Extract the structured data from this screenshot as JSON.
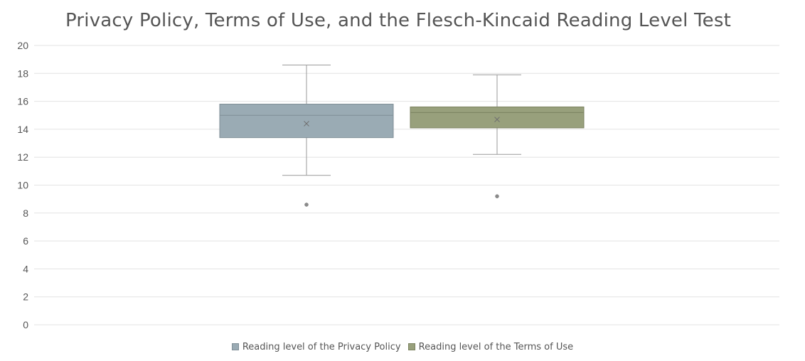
{
  "chart_data": {
    "type": "boxplot",
    "title": "Privacy Policy, Terms of Use, and the Flesch-Kincaid Reading Level Test",
    "xlabel": "",
    "ylabel": "",
    "ylim": [
      0,
      20
    ],
    "y_ticks": [
      0,
      2,
      4,
      6,
      8,
      10,
      12,
      14,
      16,
      18,
      20
    ],
    "grid": true,
    "legend_position": "bottom",
    "series": [
      {
        "name": "Reading level of the Privacy Policy",
        "color": "#9aabb4",
        "stroke": "#7f8e96",
        "min": 10.7,
        "q1": 13.4,
        "median": 15.0,
        "q3": 15.8,
        "max": 18.6,
        "mean": 14.4,
        "outliers": [
          8.6
        ]
      },
      {
        "name": "Reading level of the Terms of Use",
        "color": "#98a07c",
        "stroke": "#7b8260",
        "min": 12.2,
        "q1": 14.1,
        "median": 15.2,
        "q3": 15.6,
        "max": 17.9,
        "mean": 14.7,
        "outliers": [
          9.2
        ]
      }
    ]
  }
}
